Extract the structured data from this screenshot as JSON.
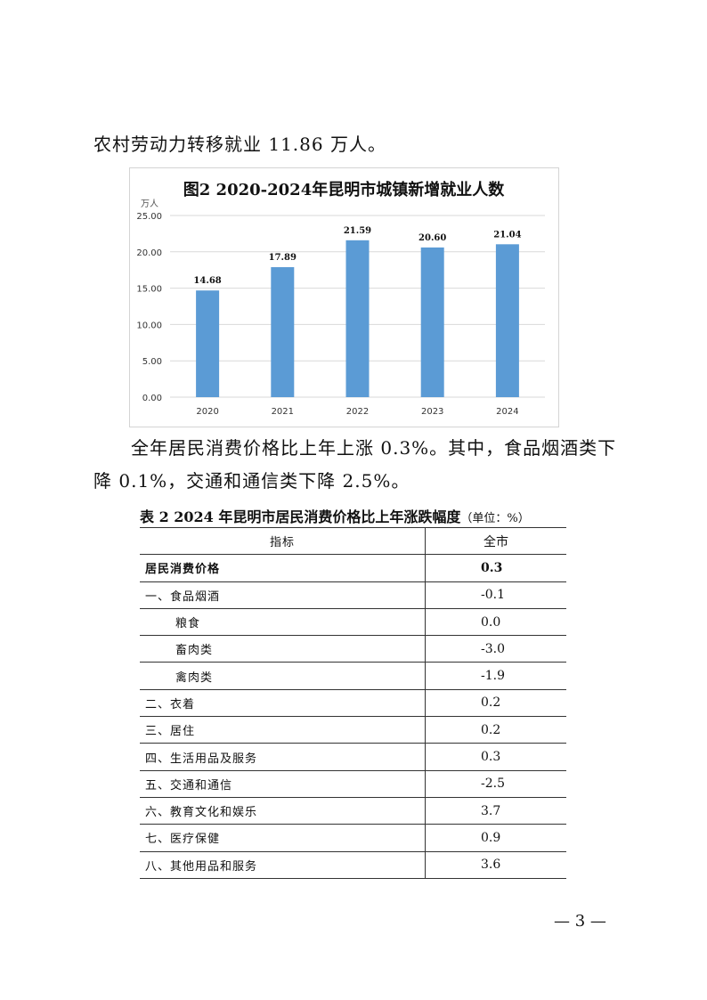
{
  "paragraphs": [
    "农村劳动力转移就业 11.86 万人。",
    "全年居民消费价格比上年上涨 0.3%。其中，食品烟酒类下",
    "降 0.1%，交通和通信类下降 2.5%。"
  ],
  "chart_data": {
    "type": "bar",
    "title": "图2 2020-2024年昆明市城镇新增就业人数",
    "ylabel": "万人",
    "categories": [
      "2020",
      "2021",
      "2022",
      "2023",
      "2024"
    ],
    "values": [
      14.68,
      17.89,
      21.59,
      20.6,
      21.04
    ],
    "data_labels": [
      "14.68",
      "17.89",
      "21.59",
      "20.60",
      "21.04"
    ],
    "ylim": [
      0,
      25
    ],
    "yticks": [
      "0.00",
      "5.00",
      "10.00",
      "15.00",
      "20.00",
      "25.00"
    ],
    "grid": true,
    "bar_color": "#5b9bd5"
  },
  "table": {
    "title": "表 2 2024 年昆明市居民消费价格比上年涨跌幅度",
    "unit": "（单位：%）",
    "headers": [
      "指标",
      "全市"
    ],
    "rows": [
      {
        "label": "居民消费价格",
        "value": "0.3"
      },
      {
        "label": "一、食品烟酒",
        "value": "-0.1"
      },
      {
        "label": "粮食",
        "value": "0.0"
      },
      {
        "label": "畜肉类",
        "value": "-3.0"
      },
      {
        "label": "禽肉类",
        "value": "-1.9"
      },
      {
        "label": "二、衣着",
        "value": "0.2"
      },
      {
        "label": "三、居住",
        "value": "0.2"
      },
      {
        "label": "四、生活用品及服务",
        "value": "0.3"
      },
      {
        "label": "五、交通和通信",
        "value": "-2.5"
      },
      {
        "label": "六、教育文化和娱乐",
        "value": "3.7"
      },
      {
        "label": "七、医疗保健",
        "value": "0.9"
      },
      {
        "label": "八、其他用品和服务",
        "value": "3.6"
      }
    ]
  },
  "page_number": "— 3 —"
}
